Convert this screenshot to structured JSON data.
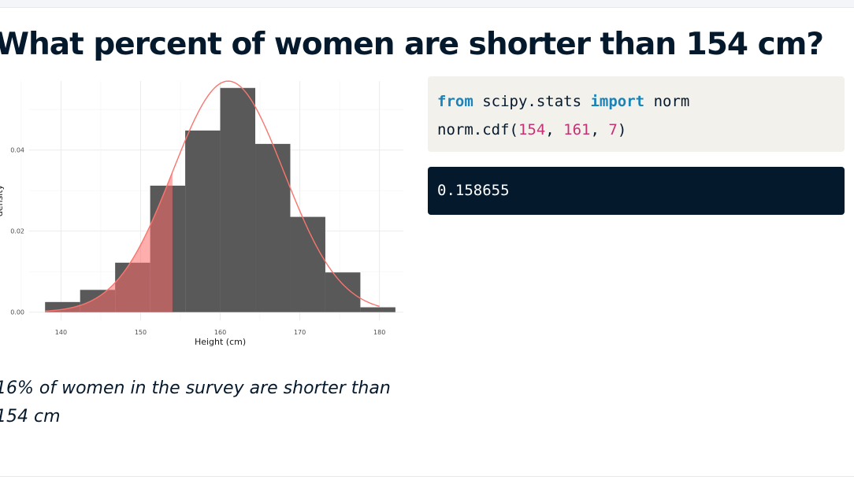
{
  "slide": {
    "title": "What percent of women are shorter than 154 cm?",
    "caption": "16% of women in the survey are shorter than 154 cm"
  },
  "code": {
    "line1": {
      "kw1": "from",
      "module": " scipy.stats ",
      "kw2": "import",
      "name": " norm"
    },
    "line2": {
      "fn": "norm.cdf(",
      "arg1": "154",
      "sep1": ", ",
      "arg2": "161",
      "sep2": ", ",
      "arg3": "7",
      "close": ")"
    },
    "output": "0.158655"
  },
  "colors": {
    "title": "#05192d",
    "code_bg": "#f3f1ec",
    "keyword": "#1a83b8",
    "number": "#c43275",
    "output_bg": "#05192d",
    "bar": "#595959",
    "shade": "#ff6b6b",
    "curve": "#f8766d"
  },
  "chart_data": {
    "type": "bar",
    "xlabel": "Height (cm)",
    "ylabel": "density",
    "xlim": [
      136,
      183
    ],
    "ylim": [
      -0.002,
      0.057
    ],
    "x_ticks": [
      140,
      150,
      160,
      170,
      180
    ],
    "y_ticks": [
      0.0,
      0.02,
      0.04
    ],
    "y_tick_labels": [
      "0.00",
      "0.02",
      "0.04"
    ],
    "grid": true,
    "histogram": {
      "bin_edges": [
        138,
        142.4,
        146.8,
        151.2,
        155.6,
        160,
        164.4,
        168.8,
        173.2,
        177.6,
        182
      ],
      "densities": [
        0.0025,
        0.0055,
        0.0122,
        0.0312,
        0.0448,
        0.0553,
        0.0415,
        0.0235,
        0.0098,
        0.0012
      ]
    },
    "normal_curve": {
      "mean": 161,
      "sd": 7,
      "x_range": [
        138,
        180
      ]
    },
    "shaded_below": 154
  }
}
